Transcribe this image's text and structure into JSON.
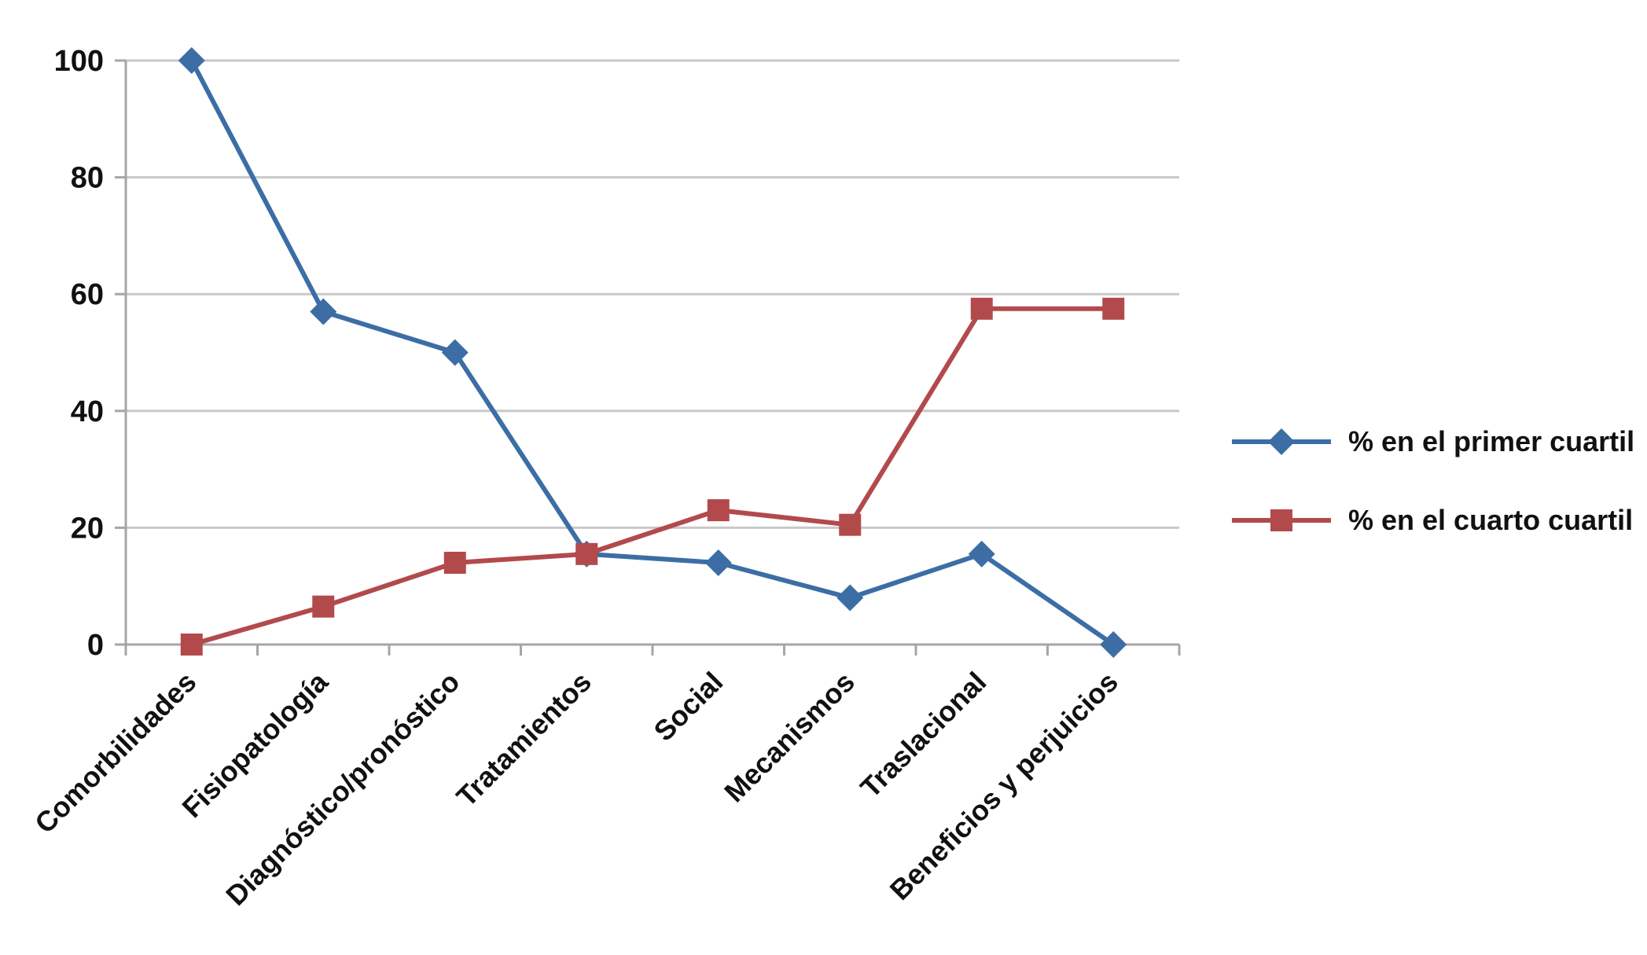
{
  "chart_data": {
    "type": "line",
    "title": "",
    "xlabel": "",
    "ylabel": "",
    "categories": [
      "Comorbilidades",
      "Fisiopatología",
      "Diagnóstico/pronóstico",
      "Tratamientos",
      "Social",
      "Mecanismos",
      "Traslacional",
      "Beneficios y perjuicios"
    ],
    "series": [
      {
        "name": "% en el primer cuartil",
        "marker": "diamond",
        "color": "#3C6EA5",
        "values": [
          100,
          57,
          50,
          15.5,
          14,
          8,
          15.5,
          0
        ]
      },
      {
        "name": "% en el cuarto cuartil",
        "marker": "square",
        "color": "#B24A4C",
        "values": [
          0,
          6.5,
          14,
          15.5,
          23,
          20.5,
          57.5,
          57.5
        ]
      }
    ],
    "ylim": [
      0,
      100
    ],
    "yticks": [
      0,
      20,
      40,
      60,
      80,
      100
    ],
    "grid": "horizontal",
    "legend_position": "right"
  },
  "colors": {
    "grid": "#C8C8C8",
    "axis": "#A6A6A6",
    "text": "#111111",
    "background": "#FFFFFF"
  }
}
